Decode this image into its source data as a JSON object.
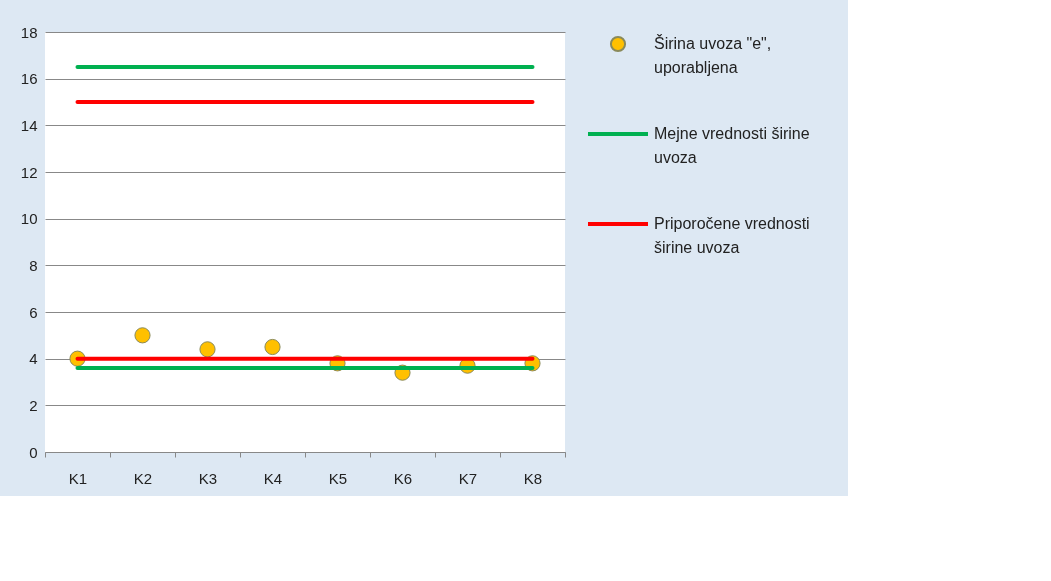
{
  "chart_data": {
    "type": "scatter",
    "categories": [
      "K1",
      "K2",
      "K3",
      "K4",
      "K5",
      "K6",
      "K7",
      "K8"
    ],
    "series": [
      {
        "name": "Širina uvoza \"e\", uporabljena",
        "marker": "circle",
        "color": "#ffc000",
        "values": [
          4.0,
          5.0,
          4.4,
          4.5,
          3.8,
          3.4,
          3.7,
          3.8
        ]
      },
      {
        "name": "Mejne vrednosti širine uvoza",
        "type": "line",
        "color": "#00b050",
        "values": [
          16.5,
          16.5,
          16.5,
          16.5,
          16.5,
          16.5,
          16.5,
          16.5
        ]
      },
      {
        "type": "line",
        "color": "#00b050",
        "values": [
          3.6,
          3.6,
          3.6,
          3.6,
          3.6,
          3.6,
          3.6,
          3.6
        ]
      },
      {
        "name": "Priporočene vrednosti širine uvoza",
        "type": "line",
        "color": "#ff0000",
        "values": [
          15.0,
          15.0,
          15.0,
          15.0,
          15.0,
          15.0,
          15.0,
          15.0
        ]
      },
      {
        "type": "line",
        "color": "#ff0000",
        "values": [
          4.0,
          4.0,
          4.0,
          4.0,
          4.0,
          4.0,
          4.0,
          4.0
        ]
      }
    ],
    "ylim": [
      0,
      18
    ],
    "yticks": [
      0,
      2,
      4,
      6,
      8,
      10,
      12,
      14,
      16,
      18
    ],
    "grid": "y",
    "legend": "right"
  }
}
